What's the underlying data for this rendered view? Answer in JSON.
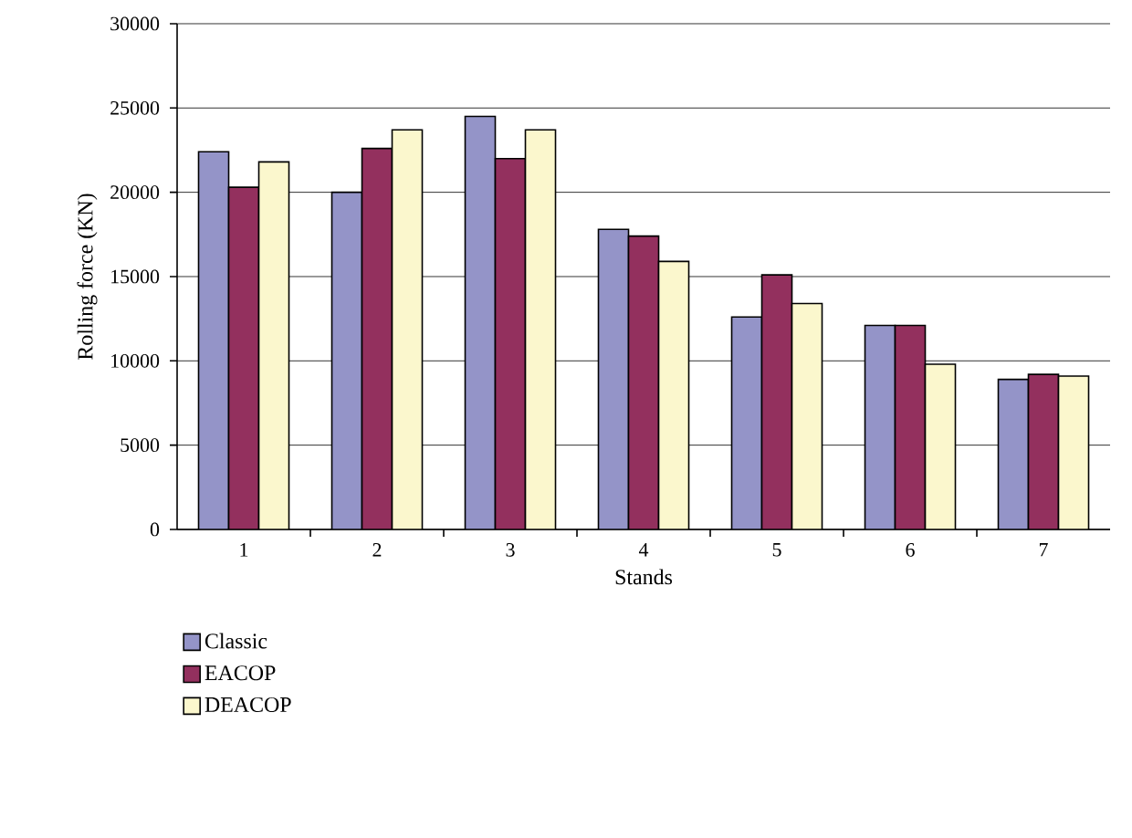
{
  "chart_data": {
    "type": "bar",
    "xlabel": "Stands",
    "ylabel": "Rolling force (KN)",
    "categories": [
      "1",
      "2",
      "3",
      "4",
      "5",
      "6",
      "7"
    ],
    "series": [
      {
        "name": "Classic",
        "color": "#9494c8",
        "values": [
          22400,
          20000,
          24500,
          17800,
          12600,
          12100,
          8900
        ]
      },
      {
        "name": "EACOP",
        "color": "#93305e",
        "values": [
          20300,
          22600,
          22000,
          17400,
          15100,
          12100,
          9200
        ]
      },
      {
        "name": "DEACOP",
        "color": "#fbf7cd",
        "values": [
          21800,
          23700,
          23700,
          15900,
          13400,
          9800,
          9100
        ]
      }
    ],
    "ylim": [
      0,
      30000
    ],
    "yticks": [
      0,
      5000,
      10000,
      15000,
      20000,
      25000,
      30000
    ],
    "grid": "y",
    "legend": "bottom left"
  }
}
